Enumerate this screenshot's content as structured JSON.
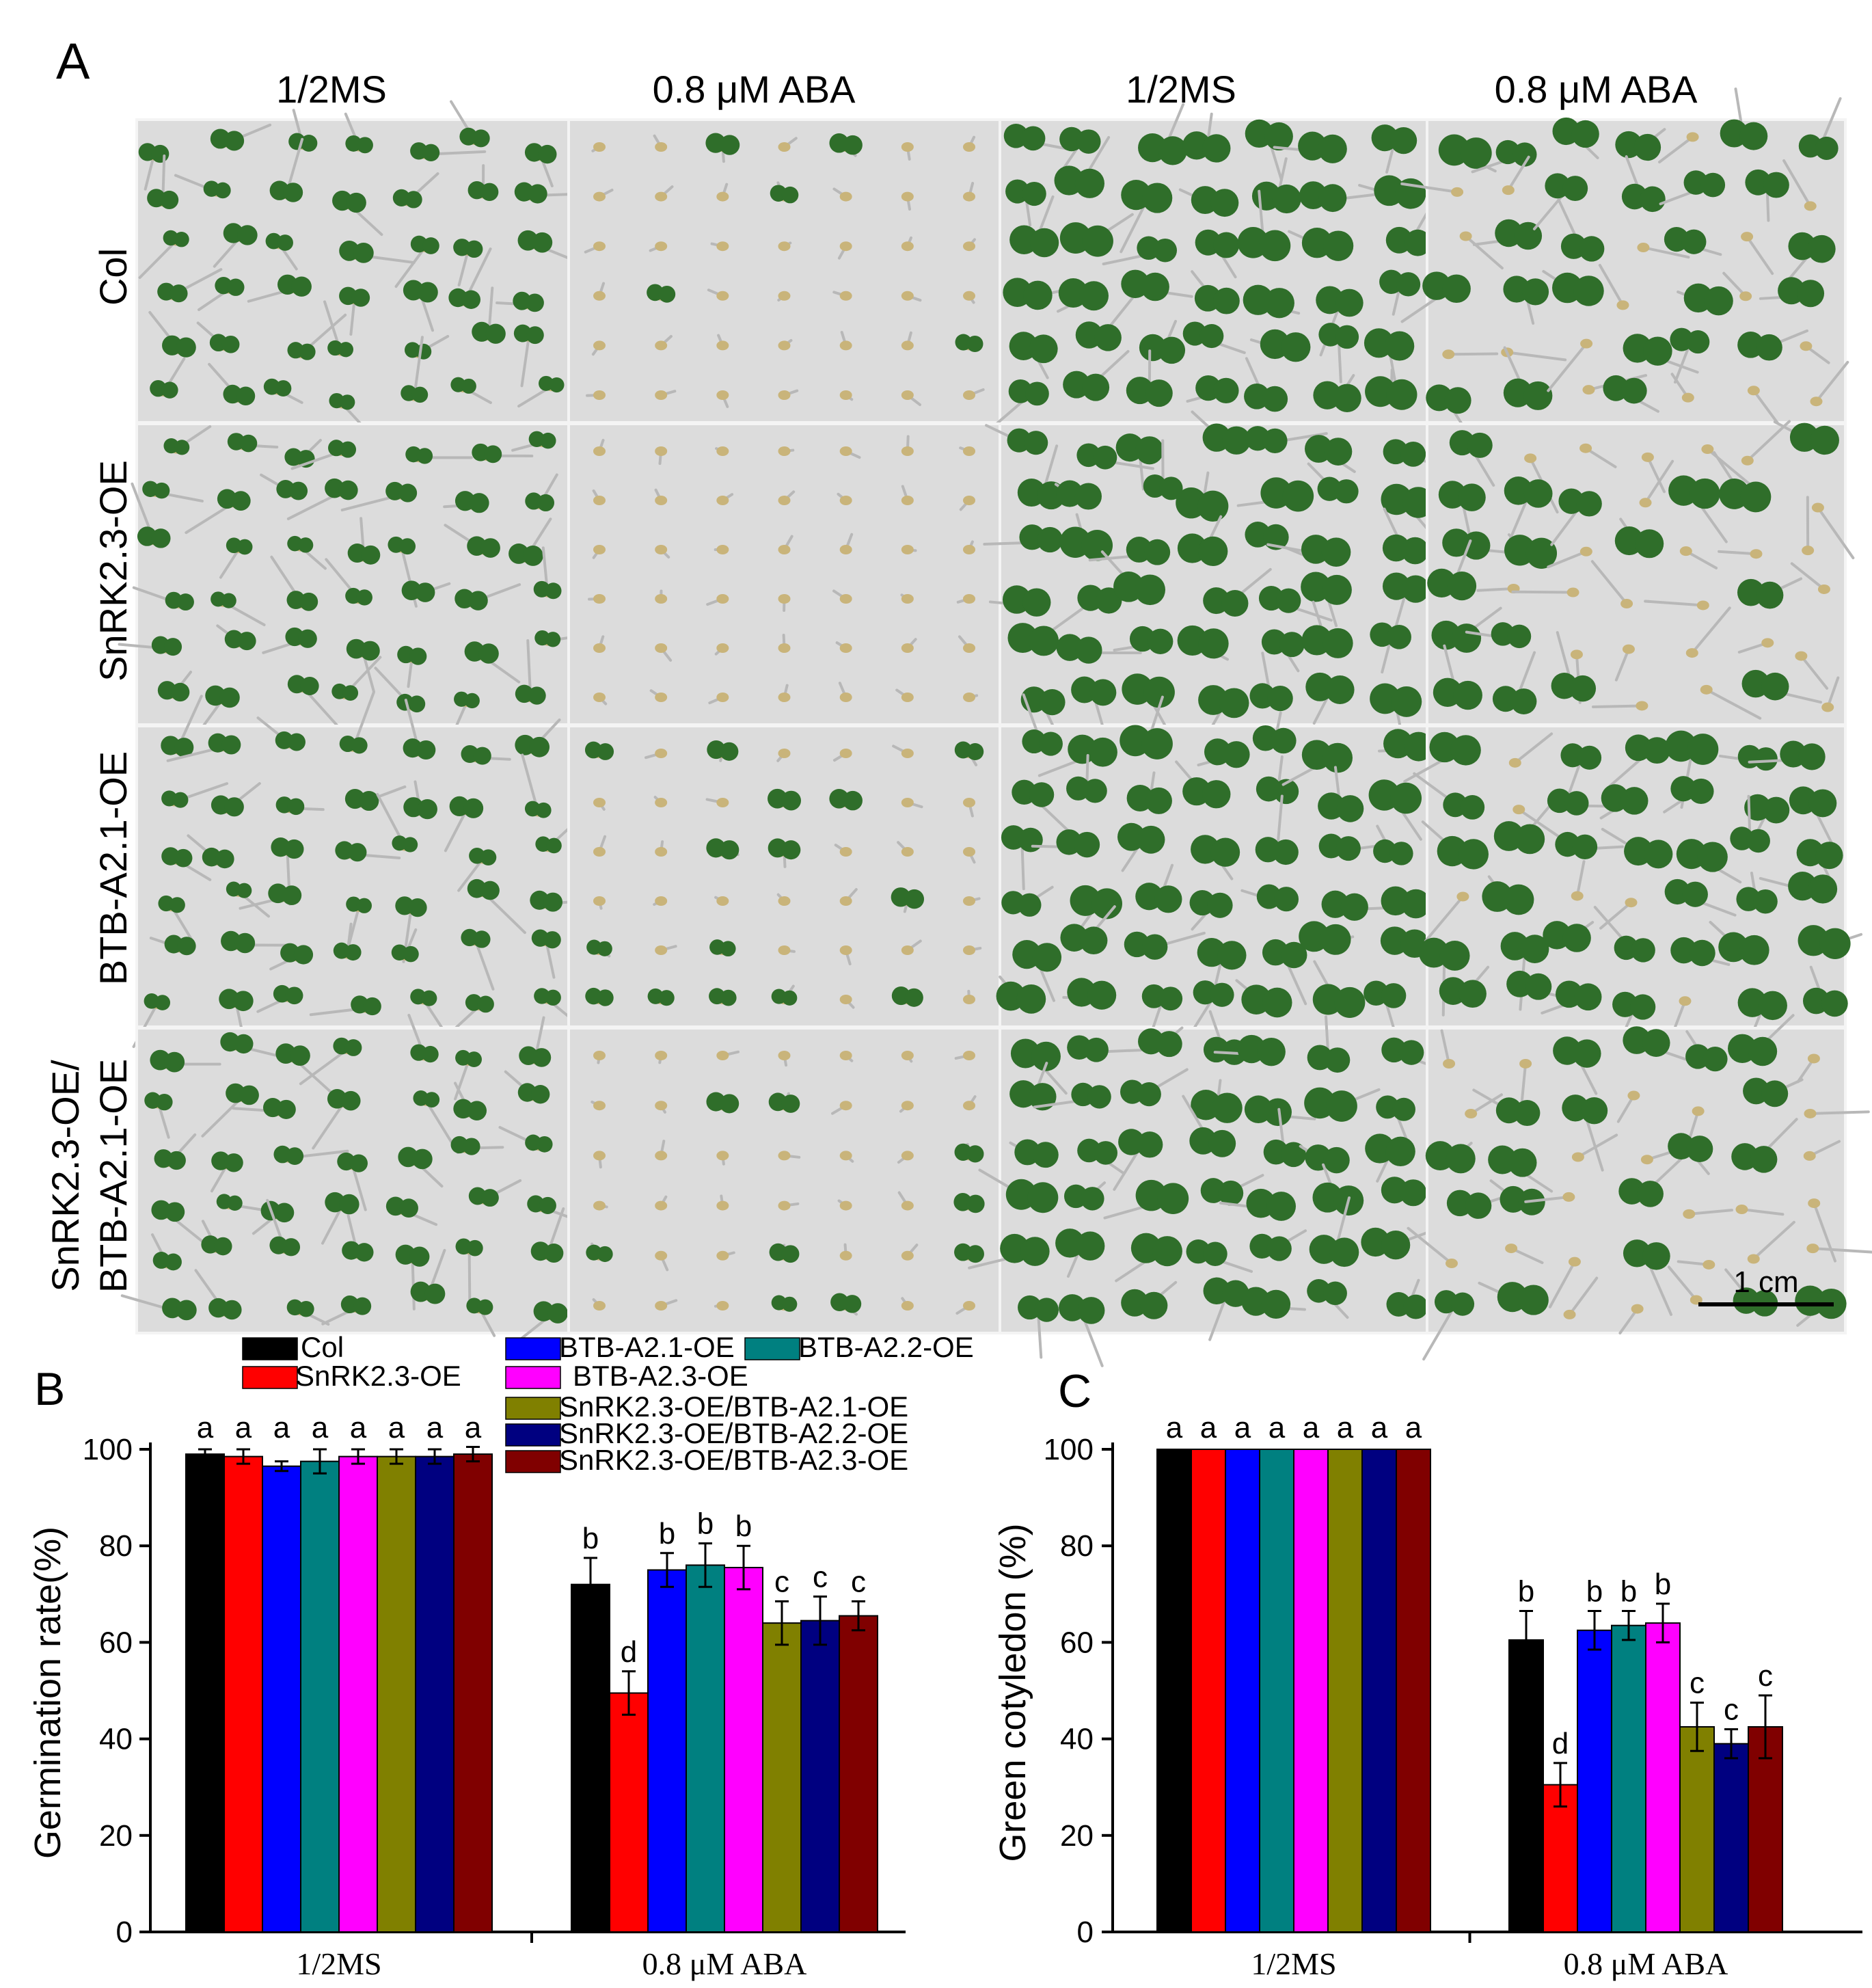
{
  "panel_a": {
    "letter": "A",
    "column_headers": [
      "1/2MS",
      "0.8 μM ABA",
      "1/2MS",
      "0.8 μM ABA"
    ],
    "row_labels": [
      [
        "Col"
      ],
      [
        "SnRK2.3-OE"
      ],
      [
        "BTB-A2.1-OE"
      ],
      [
        "SnRK2.3-OE/",
        "BTB-A2.1-OE"
      ]
    ],
    "scale_bar": "1 cm",
    "colors": {
      "plate": "#dcdcdc",
      "plate_border": "#f4f4f4",
      "leaf": "#2f6e2a",
      "leaf_light": "#5bbf3a",
      "seed": "#c9b47a",
      "root": "#b8b8b8"
    }
  },
  "legend": {
    "entries": [
      "Col",
      "SnRK2.3-OE",
      "BTB-A2.1-OE",
      "BTB-A2.2-OE",
      "BTB-A2.3-OE",
      "SnRK2.3-OE/BTB-A2.1-OE",
      "SnRK2.3-OE/BTB-A2.2-OE",
      "SnRK2.3-OE/BTB-A2.3-OE"
    ],
    "colors": [
      "#000000",
      "#ff0000",
      "#0000ff",
      "#008080",
      "#ff00ff",
      "#808000",
      "#000080",
      "#800000"
    ]
  },
  "chart_data": [
    {
      "panel": "B",
      "type": "bar",
      "ylabel": "Germination rate(%)",
      "xlabel": "",
      "categories": [
        "1/2MS",
        "0.8 μM ABA"
      ],
      "ylim": [
        0,
        100
      ],
      "yticks": [
        "0",
        "20",
        "40",
        "60",
        "80",
        "100"
      ],
      "series": [
        {
          "name": "Col",
          "values": [
            99,
            72
          ],
          "errors": [
            1,
            5.5
          ],
          "letters": [
            "a",
            "b"
          ]
        },
        {
          "name": "SnRK2.3-OE",
          "values": [
            98.5,
            49.5
          ],
          "errors": [
            1.5,
            4.5
          ],
          "letters": [
            "a",
            "d"
          ]
        },
        {
          "name": "BTB-A2.1-OE",
          "values": [
            96.5,
            75
          ],
          "errors": [
            1,
            3.5
          ],
          "letters": [
            "a",
            "b"
          ]
        },
        {
          "name": "BTB-A2.2-OE",
          "values": [
            97.5,
            76
          ],
          "errors": [
            2.5,
            4.5
          ],
          "letters": [
            "a",
            "b"
          ]
        },
        {
          "name": "BTB-A2.3-OE",
          "values": [
            98.5,
            75.5
          ],
          "errors": [
            1.5,
            4.5
          ],
          "letters": [
            "a",
            "b"
          ]
        },
        {
          "name": "SnRK2.3-OE/BTB-A2.1-OE",
          "values": [
            98.5,
            64
          ],
          "errors": [
            1.5,
            4.5
          ],
          "letters": [
            "a",
            "c"
          ]
        },
        {
          "name": "SnRK2.3-OE/BTB-A2.2-OE",
          "values": [
            98.5,
            64.5
          ],
          "errors": [
            1.5,
            5
          ],
          "letters": [
            "a",
            "c"
          ]
        },
        {
          "name": "SnRK2.3-OE/BTB-A2.3-OE",
          "values": [
            99,
            65.5
          ],
          "errors": [
            1.5,
            3
          ],
          "letters": [
            "a",
            "c"
          ]
        }
      ]
    },
    {
      "panel": "C",
      "type": "bar",
      "ylabel": "Green cotyledon (%)",
      "xlabel": "",
      "categories": [
        "1/2MS",
        "0.8 μM ABA"
      ],
      "ylim": [
        0,
        100
      ],
      "yticks": [
        "0",
        "20",
        "40",
        "60",
        "80",
        "100"
      ],
      "series": [
        {
          "name": "Col",
          "values": [
            100,
            60.5
          ],
          "errors": [
            0,
            6
          ],
          "letters": [
            "a",
            "b"
          ]
        },
        {
          "name": "SnRK2.3-OE",
          "values": [
            100,
            30.5
          ],
          "errors": [
            0,
            4.5
          ],
          "letters": [
            "a",
            "d"
          ]
        },
        {
          "name": "BTB-A2.1-OE",
          "values": [
            100,
            62.5
          ],
          "errors": [
            0,
            4
          ],
          "letters": [
            "a",
            "b"
          ]
        },
        {
          "name": "BTB-A2.2-OE",
          "values": [
            100,
            63.5
          ],
          "errors": [
            0,
            3
          ],
          "letters": [
            "a",
            "b"
          ]
        },
        {
          "name": "BTB-A2.3-OE",
          "values": [
            100,
            64
          ],
          "errors": [
            0,
            4
          ],
          "letters": [
            "a",
            "b"
          ]
        },
        {
          "name": "SnRK2.3-OE/BTB-A2.1-OE",
          "values": [
            100,
            42.5
          ],
          "errors": [
            0,
            5
          ],
          "letters": [
            "a",
            "c"
          ]
        },
        {
          "name": "SnRK2.3-OE/BTB-A2.2-OE",
          "values": [
            100,
            39
          ],
          "errors": [
            0,
            3
          ],
          "letters": [
            "a",
            "c"
          ]
        },
        {
          "name": "SnRK2.3-OE/BTB-A2.3-OE",
          "values": [
            100,
            42.5
          ],
          "errors": [
            0,
            6.5
          ],
          "letters": [
            "a",
            "c"
          ]
        }
      ]
    }
  ]
}
